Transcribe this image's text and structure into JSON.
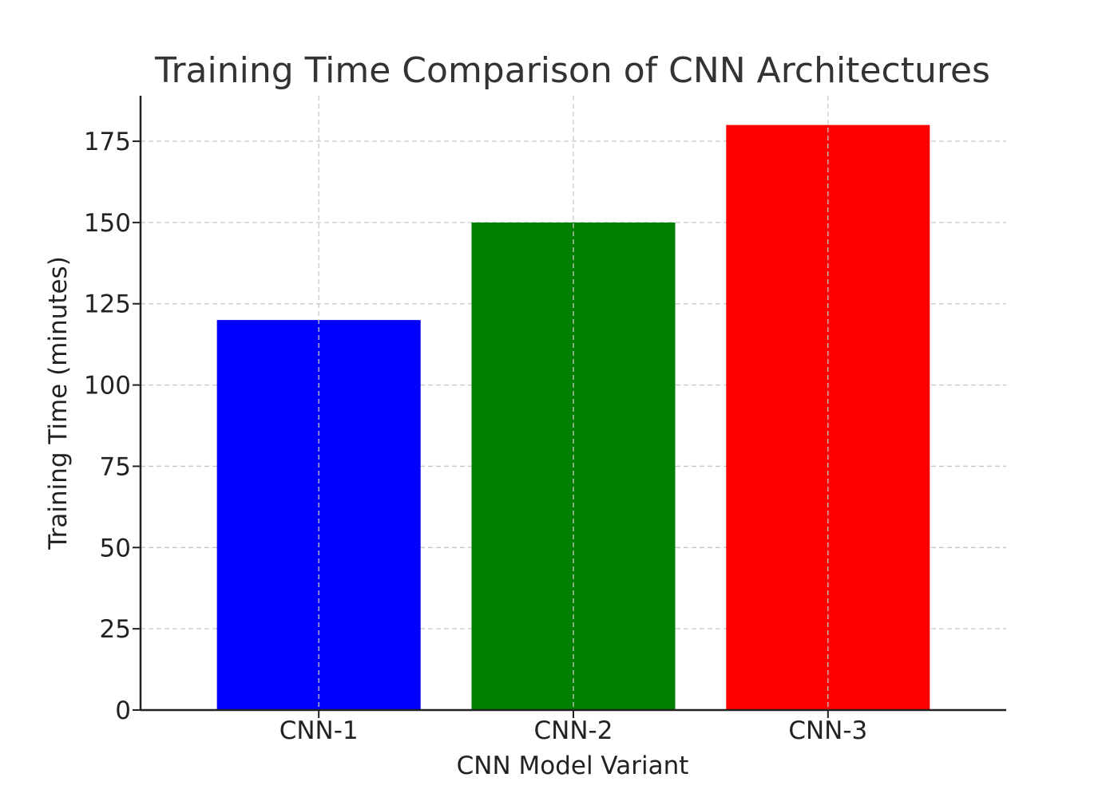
{
  "chart_data": {
    "type": "bar",
    "title": "Training Time Comparison of CNN Architectures",
    "xlabel": "CNN Model Variant",
    "ylabel": "Training Time (minutes)",
    "categories": [
      "CNN-1",
      "CNN-2",
      "CNN-3"
    ],
    "values": [
      120,
      150,
      180
    ],
    "colors": [
      "#0000ff",
      "#008000",
      "#ff0000"
    ],
    "ylim": [
      0,
      189
    ],
    "yticks": [
      0,
      25,
      50,
      75,
      100,
      125,
      150,
      175
    ],
    "grid": true
  }
}
